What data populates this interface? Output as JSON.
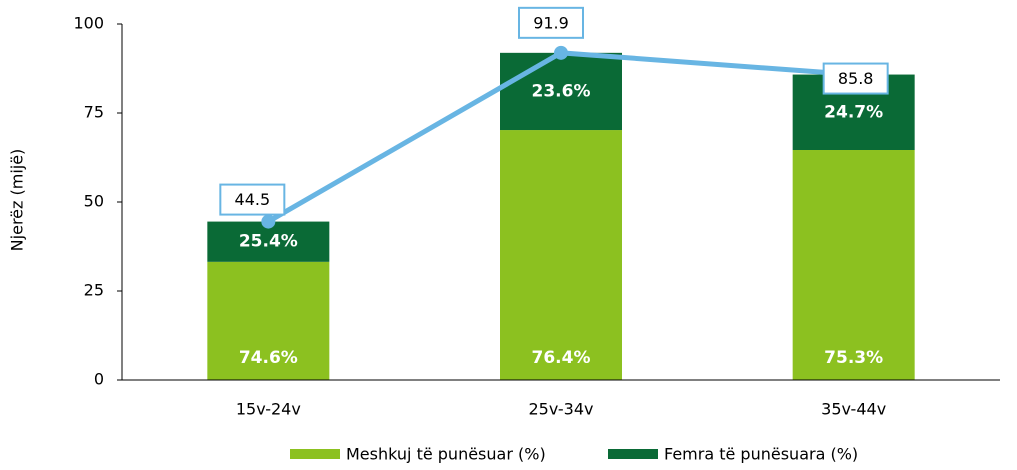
{
  "chart_data": {
    "type": "stacked_bar_line",
    "y_label": "Njerëz (mijë)",
    "categories": [
      "15v-24v",
      "25v-34v",
      "35v-44v"
    ],
    "series": [
      {
        "name": "Meshkuj të punësuar (%)",
        "color": "#8cc120",
        "values": [
          74.6,
          76.4,
          75.3
        ],
        "value_labels": [
          "74.6%",
          "76.4%",
          "75.3%"
        ]
      },
      {
        "name": "Femra të punësuara (%)",
        "color": "#0a6a36",
        "values": [
          25.4,
          23.6,
          24.7
        ],
        "value_labels": [
          "25.4%",
          "23.6%",
          "24.7%"
        ]
      }
    ],
    "line": {
      "color": "#68b5e3",
      "values": [
        44.5,
        91.9,
        85.8
      ]
    },
    "ylim": [
      0,
      100
    ],
    "yticks": [
      0,
      25,
      50,
      75,
      100
    ],
    "grid": false
  }
}
